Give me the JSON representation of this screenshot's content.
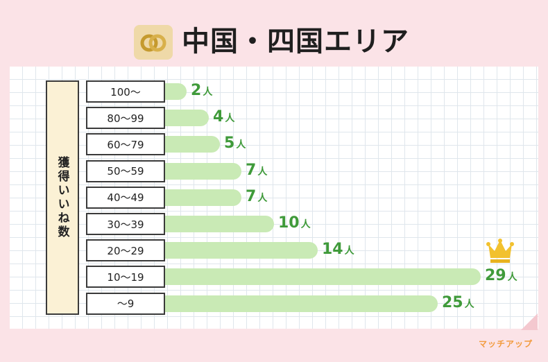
{
  "title": "中国・四国エリア",
  "brand": "マッチアップ",
  "chart_data": {
    "type": "bar",
    "orientation": "horizontal",
    "ylabel": "獲得いいね数",
    "unit": "人",
    "categories": [
      "100〜",
      "80〜99",
      "60〜79",
      "50〜59",
      "40〜49",
      "30〜39",
      "20〜29",
      "10〜19",
      "〜9"
    ],
    "values": [
      2,
      4,
      5,
      7,
      7,
      10,
      14,
      29,
      25
    ],
    "highlight": "10〜19",
    "bar_color": "#c9eab5",
    "label_color": "#3f9a3a"
  }
}
